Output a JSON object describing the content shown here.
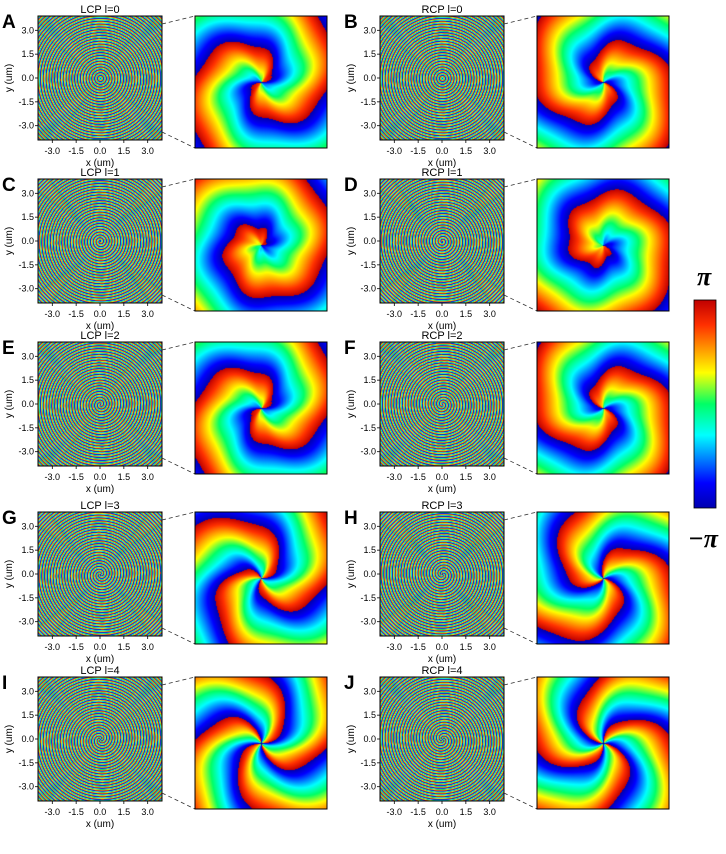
{
  "axis_ticks": [
    "-3.0",
    "-1.5",
    "0.0",
    "1.5",
    "3.0"
  ],
  "y_ticks": [
    "3.0",
    "1.5",
    "0.0",
    "-1.5",
    "-3.0"
  ],
  "xlabel": "x (um)",
  "ylabel": "y (um)",
  "colorbar": {
    "max_label": "π",
    "min_label": "−π"
  },
  "panels": [
    {
      "letter": "A",
      "title": "LCP l=0",
      "pol": "LCP",
      "l": 0,
      "show_xlabel": true
    },
    {
      "letter": "B",
      "title": "RCP l=0",
      "pol": "RCP",
      "l": 0,
      "show_xlabel": true
    },
    {
      "letter": "C",
      "title": "LCP l=1",
      "pol": "LCP",
      "l": 1,
      "show_xlabel": true
    },
    {
      "letter": "D",
      "title": "RCP l=1",
      "pol": "RCP",
      "l": 1,
      "show_xlabel": true
    },
    {
      "letter": "E",
      "title": "LCP l=2",
      "pol": "LCP",
      "l": 2,
      "show_xlabel": false
    },
    {
      "letter": "F",
      "title": "RCP l=2",
      "pol": "RCP",
      "l": 2,
      "show_xlabel": false
    },
    {
      "letter": "G",
      "title": "LCP l=3",
      "pol": "LCP",
      "l": 3,
      "show_xlabel": false
    },
    {
      "letter": "H",
      "title": "RCP l=3",
      "pol": "RCP",
      "l": 3,
      "show_xlabel": false
    },
    {
      "letter": "I",
      "title": "LCP l=4",
      "pol": "LCP",
      "l": 4,
      "show_xlabel": true
    },
    {
      "letter": "J",
      "title": "RCP l=4",
      "pol": "RCP",
      "l": 4,
      "show_xlabel": true
    }
  ]
}
